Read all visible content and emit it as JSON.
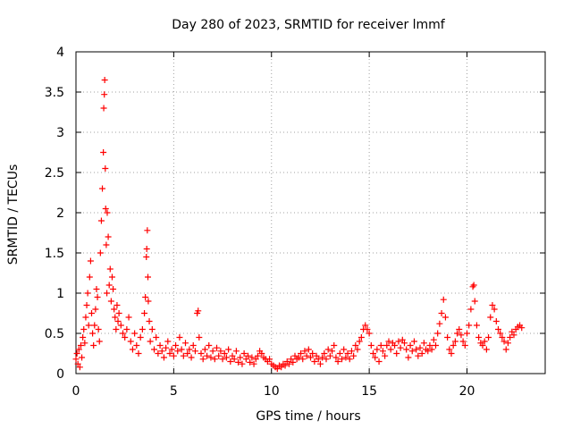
{
  "chart_data": {
    "type": "scatter",
    "title": "Day 280 of 2023, SRMTID for receiver lmmf",
    "xlabel": "GPS time / hours",
    "ylabel": "SRMTID / TECUs",
    "xlim": [
      0,
      24
    ],
    "ylim": [
      0,
      4
    ],
    "xticks": [
      0,
      5,
      10,
      15,
      20
    ],
    "xtick_labels": [
      "0",
      "5",
      "10",
      "15",
      "20"
    ],
    "yticks": [
      0,
      0.5,
      1,
      1.5,
      2,
      2.5,
      3,
      3.5,
      4
    ],
    "ytick_labels": [
      "0",
      "0.5",
      "1",
      "1.5",
      "2",
      "2.5",
      "3",
      "3.5",
      "4"
    ],
    "grid": true,
    "marker": "+",
    "marker_color": "#ff0000",
    "series": [
      {
        "name": "SRMTID",
        "points": [
          [
            0.0,
            0.18
          ],
          [
            0.05,
            0.25
          ],
          [
            0.1,
            0.12
          ],
          [
            0.15,
            0.3
          ],
          [
            0.2,
            0.08
          ],
          [
            0.25,
            0.35
          ],
          [
            0.3,
            0.2
          ],
          [
            0.35,
            0.45
          ],
          [
            0.4,
            0.55
          ],
          [
            0.45,
            0.38
          ],
          [
            0.5,
            0.7
          ],
          [
            0.55,
            0.85
          ],
          [
            0.6,
            1.0
          ],
          [
            0.65,
            0.6
          ],
          [
            0.7,
            1.2
          ],
          [
            0.75,
            1.4
          ],
          [
            0.8,
            0.75
          ],
          [
            0.85,
            0.5
          ],
          [
            0.9,
            0.35
          ],
          [
            0.95,
            0.6
          ],
          [
            1.0,
            0.8
          ],
          [
            1.05,
            1.05
          ],
          [
            1.1,
            0.95
          ],
          [
            1.15,
            0.55
          ],
          [
            1.2,
            0.4
          ],
          [
            1.25,
            1.5
          ],
          [
            1.3,
            1.9
          ],
          [
            1.35,
            2.3
          ],
          [
            1.4,
            2.75
          ],
          [
            1.42,
            3.3
          ],
          [
            1.45,
            3.47
          ],
          [
            1.47,
            3.65
          ],
          [
            1.5,
            2.55
          ],
          [
            1.52,
            2.05
          ],
          [
            1.55,
            1.6
          ],
          [
            1.58,
            1.0
          ],
          [
            1.6,
            2.0
          ],
          [
            1.65,
            1.7
          ],
          [
            1.7,
            1.1
          ],
          [
            1.75,
            1.3
          ],
          [
            1.8,
            0.9
          ],
          [
            1.85,
            1.2
          ],
          [
            1.9,
            1.05
          ],
          [
            1.95,
            0.8
          ],
          [
            2.0,
            0.7
          ],
          [
            2.05,
            0.55
          ],
          [
            2.1,
            0.85
          ],
          [
            2.15,
            0.65
          ],
          [
            2.2,
            0.75
          ],
          [
            2.3,
            0.6
          ],
          [
            2.4,
            0.5
          ],
          [
            2.5,
            0.45
          ],
          [
            2.6,
            0.55
          ],
          [
            2.7,
            0.7
          ],
          [
            2.8,
            0.4
          ],
          [
            2.9,
            0.3
          ],
          [
            3.0,
            0.5
          ],
          [
            3.1,
            0.35
          ],
          [
            3.2,
            0.25
          ],
          [
            3.3,
            0.45
          ],
          [
            3.4,
            0.55
          ],
          [
            3.5,
            0.75
          ],
          [
            3.55,
            0.95
          ],
          [
            3.6,
            1.45
          ],
          [
            3.62,
            1.55
          ],
          [
            3.65,
            1.78
          ],
          [
            3.68,
            1.2
          ],
          [
            3.7,
            0.9
          ],
          [
            3.75,
            0.65
          ],
          [
            3.8,
            0.4
          ],
          [
            3.9,
            0.55
          ],
          [
            4.0,
            0.3
          ],
          [
            4.1,
            0.45
          ],
          [
            4.2,
            0.25
          ],
          [
            4.3,
            0.35
          ],
          [
            4.4,
            0.28
          ],
          [
            4.5,
            0.2
          ],
          [
            4.6,
            0.32
          ],
          [
            4.7,
            0.4
          ],
          [
            4.8,
            0.25
          ],
          [
            4.9,
            0.3
          ],
          [
            5.0,
            0.22
          ],
          [
            5.1,
            0.35
          ],
          [
            5.2,
            0.28
          ],
          [
            5.3,
            0.45
          ],
          [
            5.4,
            0.3
          ],
          [
            5.5,
            0.22
          ],
          [
            5.6,
            0.38
          ],
          [
            5.7,
            0.25
          ],
          [
            5.8,
            0.3
          ],
          [
            5.9,
            0.2
          ],
          [
            6.0,
            0.35
          ],
          [
            6.1,
            0.28
          ],
          [
            6.2,
            0.75
          ],
          [
            6.25,
            0.78
          ],
          [
            6.3,
            0.45
          ],
          [
            6.4,
            0.25
          ],
          [
            6.5,
            0.18
          ],
          [
            6.6,
            0.3
          ],
          [
            6.7,
            0.22
          ],
          [
            6.8,
            0.35
          ],
          [
            6.9,
            0.2
          ],
          [
            7.0,
            0.28
          ],
          [
            7.1,
            0.18
          ],
          [
            7.2,
            0.32
          ],
          [
            7.3,
            0.22
          ],
          [
            7.4,
            0.28
          ],
          [
            7.5,
            0.18
          ],
          [
            7.6,
            0.25
          ],
          [
            7.7,
            0.2
          ],
          [
            7.8,
            0.3
          ],
          [
            7.9,
            0.15
          ],
          [
            8.0,
            0.22
          ],
          [
            8.1,
            0.18
          ],
          [
            8.2,
            0.28
          ],
          [
            8.3,
            0.14
          ],
          [
            8.4,
            0.2
          ],
          [
            8.5,
            0.12
          ],
          [
            8.6,
            0.25
          ],
          [
            8.7,
            0.18
          ],
          [
            8.8,
            0.22
          ],
          [
            8.9,
            0.14
          ],
          [
            9.0,
            0.2
          ],
          [
            9.1,
            0.12
          ],
          [
            9.2,
            0.18
          ],
          [
            9.3,
            0.22
          ],
          [
            9.4,
            0.28
          ],
          [
            9.5,
            0.25
          ],
          [
            9.6,
            0.2
          ],
          [
            9.7,
            0.18
          ],
          [
            9.8,
            0.15
          ],
          [
            9.9,
            0.18
          ],
          [
            10.0,
            0.12
          ],
          [
            10.1,
            0.1
          ],
          [
            10.2,
            0.08
          ],
          [
            10.3,
            0.06
          ],
          [
            10.4,
            0.1
          ],
          [
            10.5,
            0.08
          ],
          [
            10.6,
            0.12
          ],
          [
            10.7,
            0.1
          ],
          [
            10.8,
            0.15
          ],
          [
            10.9,
            0.12
          ],
          [
            11.0,
            0.18
          ],
          [
            11.1,
            0.14
          ],
          [
            11.2,
            0.22
          ],
          [
            11.3,
            0.18
          ],
          [
            11.4,
            0.2
          ],
          [
            11.5,
            0.25
          ],
          [
            11.6,
            0.18
          ],
          [
            11.7,
            0.28
          ],
          [
            11.8,
            0.22
          ],
          [
            11.9,
            0.3
          ],
          [
            12.0,
            0.2
          ],
          [
            12.1,
            0.25
          ],
          [
            12.2,
            0.15
          ],
          [
            12.3,
            0.22
          ],
          [
            12.4,
            0.18
          ],
          [
            12.5,
            0.12
          ],
          [
            12.6,
            0.2
          ],
          [
            12.7,
            0.25
          ],
          [
            12.8,
            0.18
          ],
          [
            12.9,
            0.3
          ],
          [
            13.0,
            0.22
          ],
          [
            13.1,
            0.28
          ],
          [
            13.2,
            0.35
          ],
          [
            13.3,
            0.2
          ],
          [
            13.4,
            0.15
          ],
          [
            13.5,
            0.25
          ],
          [
            13.6,
            0.18
          ],
          [
            13.7,
            0.3
          ],
          [
            13.8,
            0.2
          ],
          [
            13.9,
            0.25
          ],
          [
            14.0,
            0.18
          ],
          [
            14.1,
            0.28
          ],
          [
            14.2,
            0.22
          ],
          [
            14.3,
            0.35
          ],
          [
            14.4,
            0.3
          ],
          [
            14.5,
            0.4
          ],
          [
            14.6,
            0.45
          ],
          [
            14.7,
            0.55
          ],
          [
            14.8,
            0.6
          ],
          [
            14.9,
            0.55
          ],
          [
            15.0,
            0.5
          ],
          [
            15.1,
            0.35
          ],
          [
            15.2,
            0.25
          ],
          [
            15.3,
            0.2
          ],
          [
            15.4,
            0.3
          ],
          [
            15.5,
            0.15
          ],
          [
            15.6,
            0.35
          ],
          [
            15.7,
            0.28
          ],
          [
            15.8,
            0.22
          ],
          [
            15.9,
            0.35
          ],
          [
            16.0,
            0.4
          ],
          [
            16.1,
            0.3
          ],
          [
            16.2,
            0.38
          ],
          [
            16.3,
            0.35
          ],
          [
            16.4,
            0.25
          ],
          [
            16.5,
            0.4
          ],
          [
            16.6,
            0.32
          ],
          [
            16.7,
            0.42
          ],
          [
            16.8,
            0.38
          ],
          [
            16.9,
            0.3
          ],
          [
            17.0,
            0.2
          ],
          [
            17.1,
            0.35
          ],
          [
            17.2,
            0.28
          ],
          [
            17.3,
            0.4
          ],
          [
            17.4,
            0.3
          ],
          [
            17.5,
            0.22
          ],
          [
            17.6,
            0.32
          ],
          [
            17.7,
            0.25
          ],
          [
            17.8,
            0.38
          ],
          [
            17.9,
            0.3
          ],
          [
            18.0,
            0.28
          ],
          [
            18.1,
            0.35
          ],
          [
            18.2,
            0.3
          ],
          [
            18.3,
            0.42
          ],
          [
            18.4,
            0.35
          ],
          [
            18.5,
            0.5
          ],
          [
            18.6,
            0.62
          ],
          [
            18.7,
            0.75
          ],
          [
            18.8,
            0.92
          ],
          [
            18.9,
            0.7
          ],
          [
            19.0,
            0.45
          ],
          [
            19.1,
            0.3
          ],
          [
            19.2,
            0.25
          ],
          [
            19.3,
            0.35
          ],
          [
            19.4,
            0.4
          ],
          [
            19.5,
            0.5
          ],
          [
            19.6,
            0.55
          ],
          [
            19.7,
            0.48
          ],
          [
            19.8,
            0.4
          ],
          [
            19.9,
            0.35
          ],
          [
            20.0,
            0.5
          ],
          [
            20.1,
            0.6
          ],
          [
            20.2,
            0.8
          ],
          [
            20.3,
            1.08
          ],
          [
            20.35,
            1.1
          ],
          [
            20.4,
            0.9
          ],
          [
            20.5,
            0.6
          ],
          [
            20.6,
            0.45
          ],
          [
            20.7,
            0.38
          ],
          [
            20.8,
            0.35
          ],
          [
            20.9,
            0.4
          ],
          [
            21.0,
            0.3
          ],
          [
            21.1,
            0.45
          ],
          [
            21.2,
            0.7
          ],
          [
            21.3,
            0.85
          ],
          [
            21.4,
            0.8
          ],
          [
            21.5,
            0.65
          ],
          [
            21.6,
            0.55
          ],
          [
            21.7,
            0.5
          ],
          [
            21.8,
            0.45
          ],
          [
            21.9,
            0.4
          ],
          [
            22.0,
            0.3
          ],
          [
            22.1,
            0.38
          ],
          [
            22.2,
            0.45
          ],
          [
            22.3,
            0.52
          ],
          [
            22.4,
            0.48
          ],
          [
            22.5,
            0.55
          ],
          [
            22.6,
            0.58
          ],
          [
            22.7,
            0.6
          ],
          [
            22.8,
            0.57
          ]
        ]
      }
    ]
  }
}
